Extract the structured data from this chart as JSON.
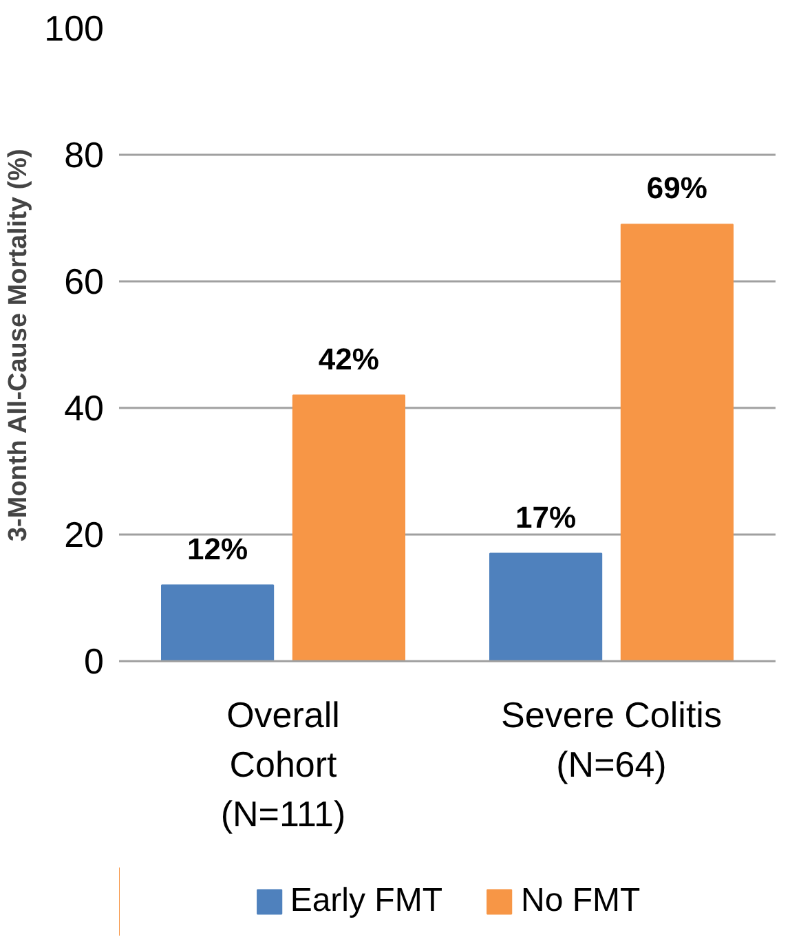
{
  "chart_data": {
    "type": "bar",
    "ylabel": "3-Month All-Cause Mortality (%)",
    "categories": [
      "Overall\nCohort\n(N=111)",
      "Severe Colitis\n(N=64)"
    ],
    "series": [
      {
        "name": "Early FMT",
        "color": "#4f81bd",
        "values": [
          12,
          17
        ],
        "value_labels": [
          "12%",
          "17%"
        ]
      },
      {
        "name": "No FMT",
        "color": "#f79646",
        "values": [
          42,
          69
        ],
        "value_labels": [
          "42%",
          "69%"
        ]
      }
    ],
    "ylim": [
      0,
      100
    ],
    "yticks": [
      0,
      20,
      40,
      60,
      80,
      100
    ],
    "grid": "y",
    "legend": "bottom"
  }
}
